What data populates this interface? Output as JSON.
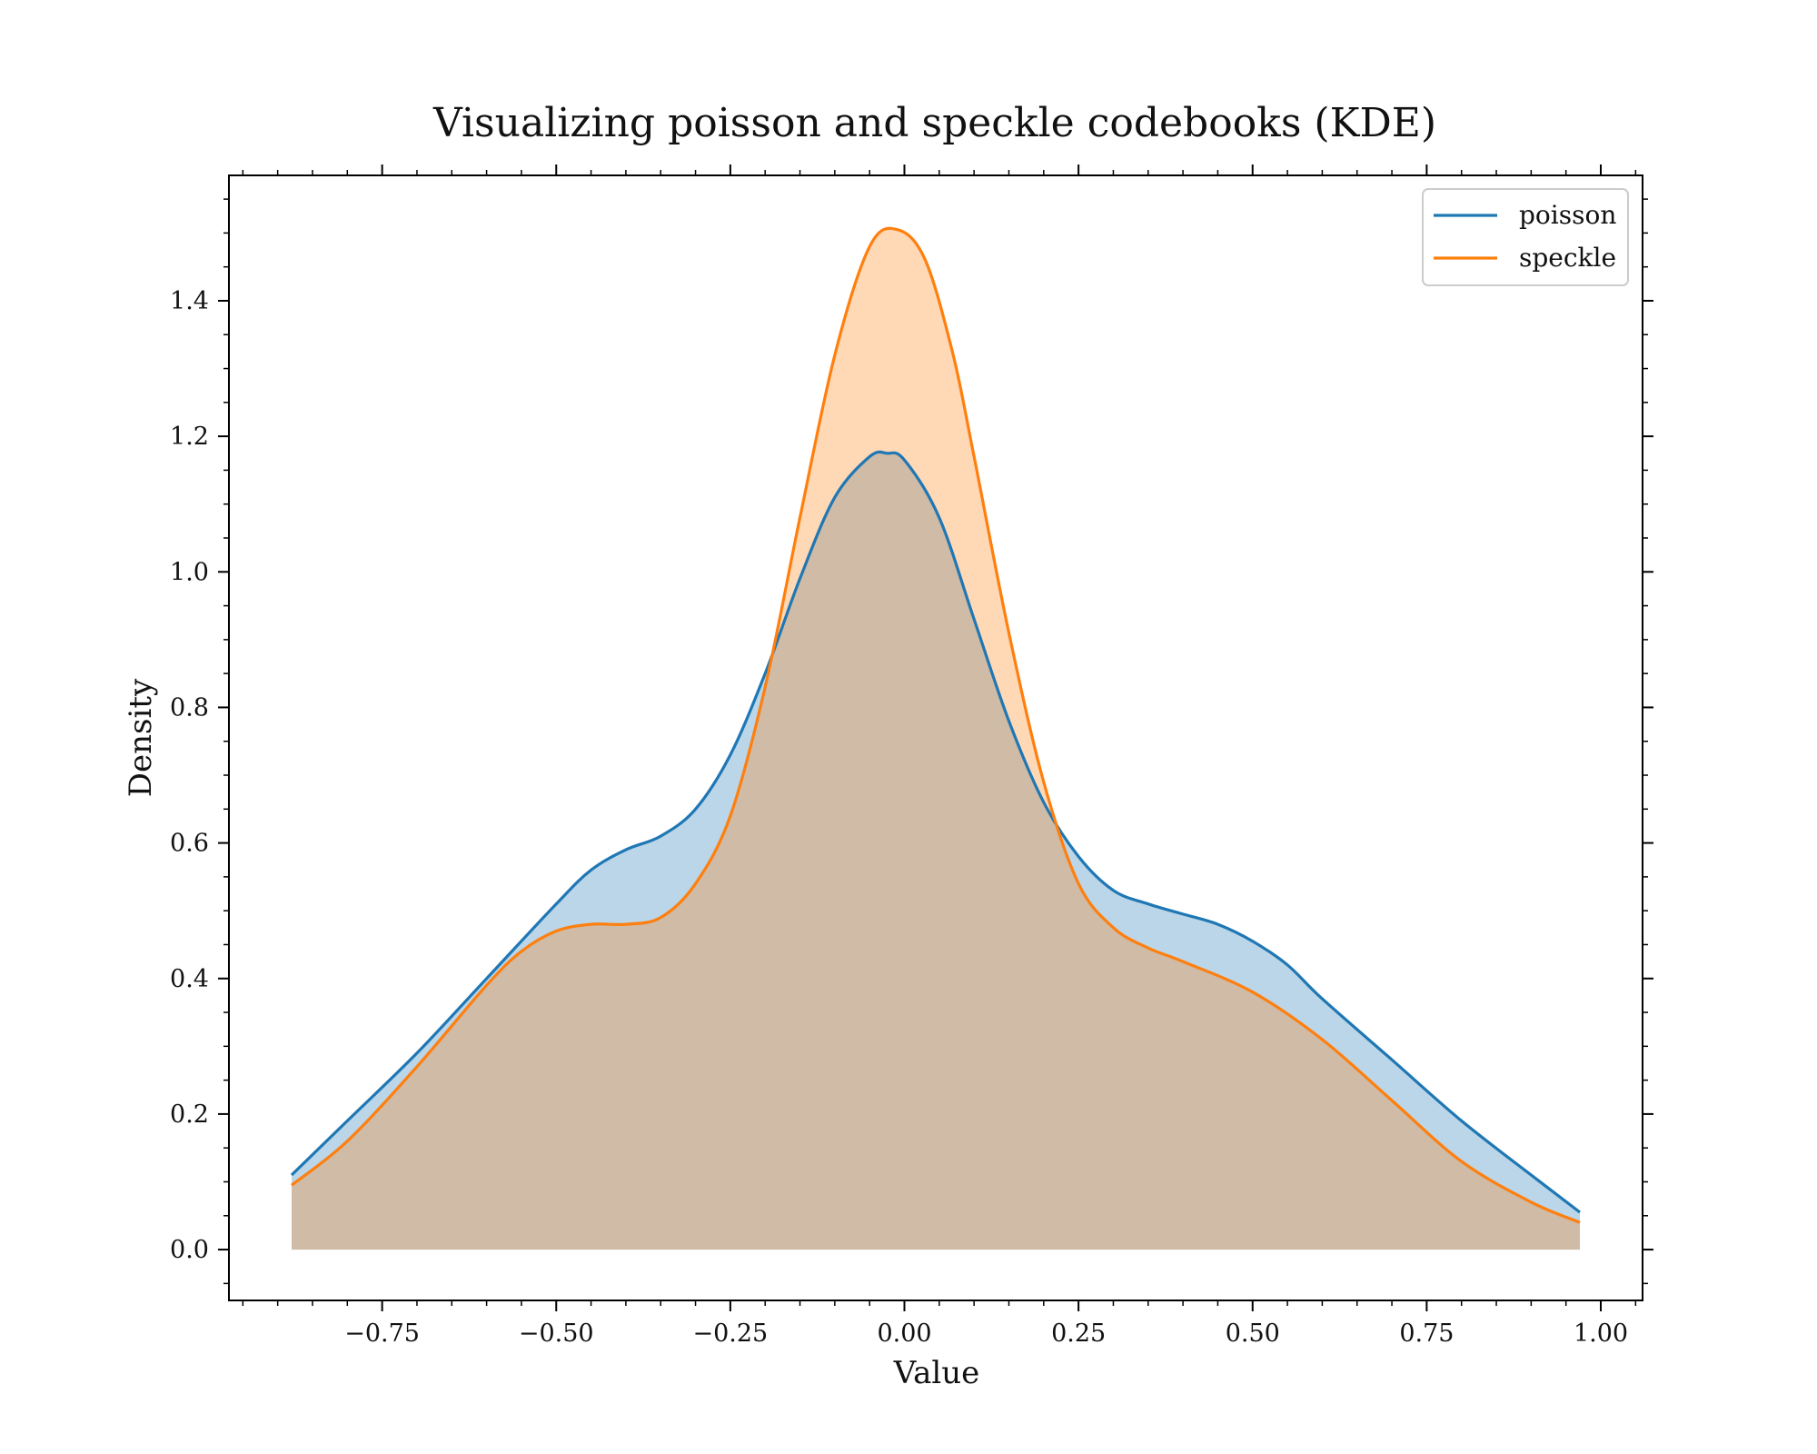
{
  "chart_data": {
    "type": "area",
    "title": "Visualizing poisson and speckle codebooks (KDE)",
    "xlabel": "Value",
    "ylabel": "Density",
    "xlim": [
      -0.97,
      1.06
    ],
    "ylim": [
      -0.075,
      1.585
    ],
    "xticks": [
      -0.75,
      -0.5,
      -0.25,
      0.0,
      0.25,
      0.5,
      0.75,
      1.0
    ],
    "xtick_labels": [
      "−0.75",
      "−0.50",
      "−0.25",
      "0.00",
      "0.25",
      "0.50",
      "0.75",
      "1.00"
    ],
    "yticks": [
      0.0,
      0.2,
      0.4,
      0.6,
      0.8,
      1.0,
      1.2,
      1.4
    ],
    "ytick_labels": [
      "0.0",
      "0.2",
      "0.4",
      "0.6",
      "0.8",
      "1.0",
      "1.2",
      "1.4"
    ],
    "x_minor_step": 0.05,
    "y_minor_step": 0.05,
    "grid": false,
    "legend_position": "top-right",
    "series": [
      {
        "name": "poisson",
        "color": "#1f77b4",
        "fill_color": "#1f77b4",
        "fill_opacity": 0.3,
        "x": [
          -0.88,
          -0.8,
          -0.7,
          -0.6,
          -0.5,
          -0.45,
          -0.4,
          -0.35,
          -0.3,
          -0.25,
          -0.2,
          -0.15,
          -0.1,
          -0.05,
          -0.025,
          0.0,
          0.05,
          0.1,
          0.15,
          0.2,
          0.25,
          0.3,
          0.35,
          0.4,
          0.45,
          0.5,
          0.55,
          0.6,
          0.7,
          0.8,
          0.9,
          0.97
        ],
        "y": [
          0.11,
          0.19,
          0.29,
          0.4,
          0.51,
          0.56,
          0.59,
          0.61,
          0.65,
          0.73,
          0.85,
          0.99,
          1.11,
          1.17,
          1.175,
          1.165,
          1.08,
          0.93,
          0.78,
          0.66,
          0.58,
          0.53,
          0.51,
          0.495,
          0.48,
          0.455,
          0.42,
          0.37,
          0.28,
          0.19,
          0.11,
          0.055
        ]
      },
      {
        "name": "speckle",
        "color": "#ff7f0e",
        "fill_color": "#ff7f0e",
        "fill_opacity": 0.3,
        "x": [
          -0.88,
          -0.8,
          -0.7,
          -0.6,
          -0.55,
          -0.5,
          -0.45,
          -0.4,
          -0.35,
          -0.3,
          -0.25,
          -0.2,
          -0.15,
          -0.1,
          -0.05,
          -0.01,
          0.03,
          0.07,
          0.1,
          0.15,
          0.2,
          0.25,
          0.3,
          0.35,
          0.4,
          0.5,
          0.6,
          0.7,
          0.8,
          0.9,
          0.97
        ],
        "y": [
          0.095,
          0.16,
          0.27,
          0.39,
          0.44,
          0.47,
          0.48,
          0.48,
          0.49,
          0.54,
          0.64,
          0.83,
          1.08,
          1.32,
          1.48,
          1.505,
          1.46,
          1.32,
          1.17,
          0.91,
          0.69,
          0.54,
          0.475,
          0.445,
          0.425,
          0.38,
          0.31,
          0.22,
          0.13,
          0.07,
          0.04
        ]
      }
    ]
  }
}
